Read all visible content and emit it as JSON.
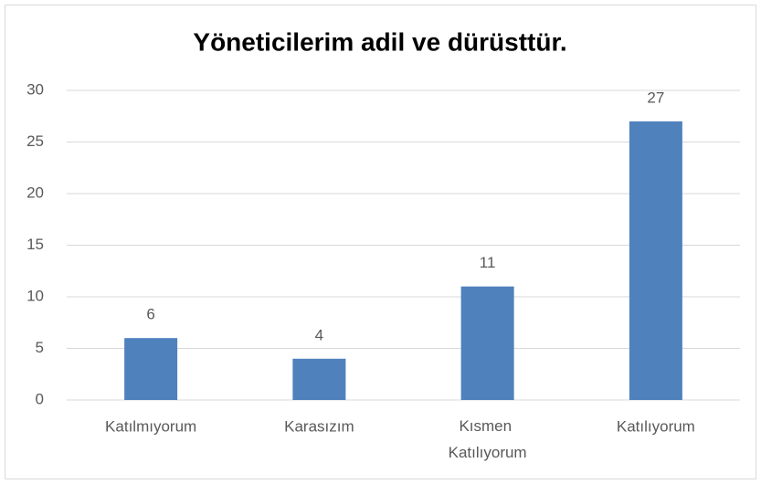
{
  "chart_data": {
    "type": "bar",
    "title": "Yöneticilerim adil ve dürüsttür.",
    "categories": [
      "Katılmıyorum",
      "Karasızım",
      "Kısmen Katılıyorum",
      "Katılıyorum"
    ],
    "values": [
      6,
      4,
      11,
      27
    ],
    "color": "#4f81bd",
    "ylim": [
      0,
      30
    ],
    "yticks": [
      0,
      5,
      10,
      15,
      20,
      25,
      30
    ],
    "grid": true
  }
}
